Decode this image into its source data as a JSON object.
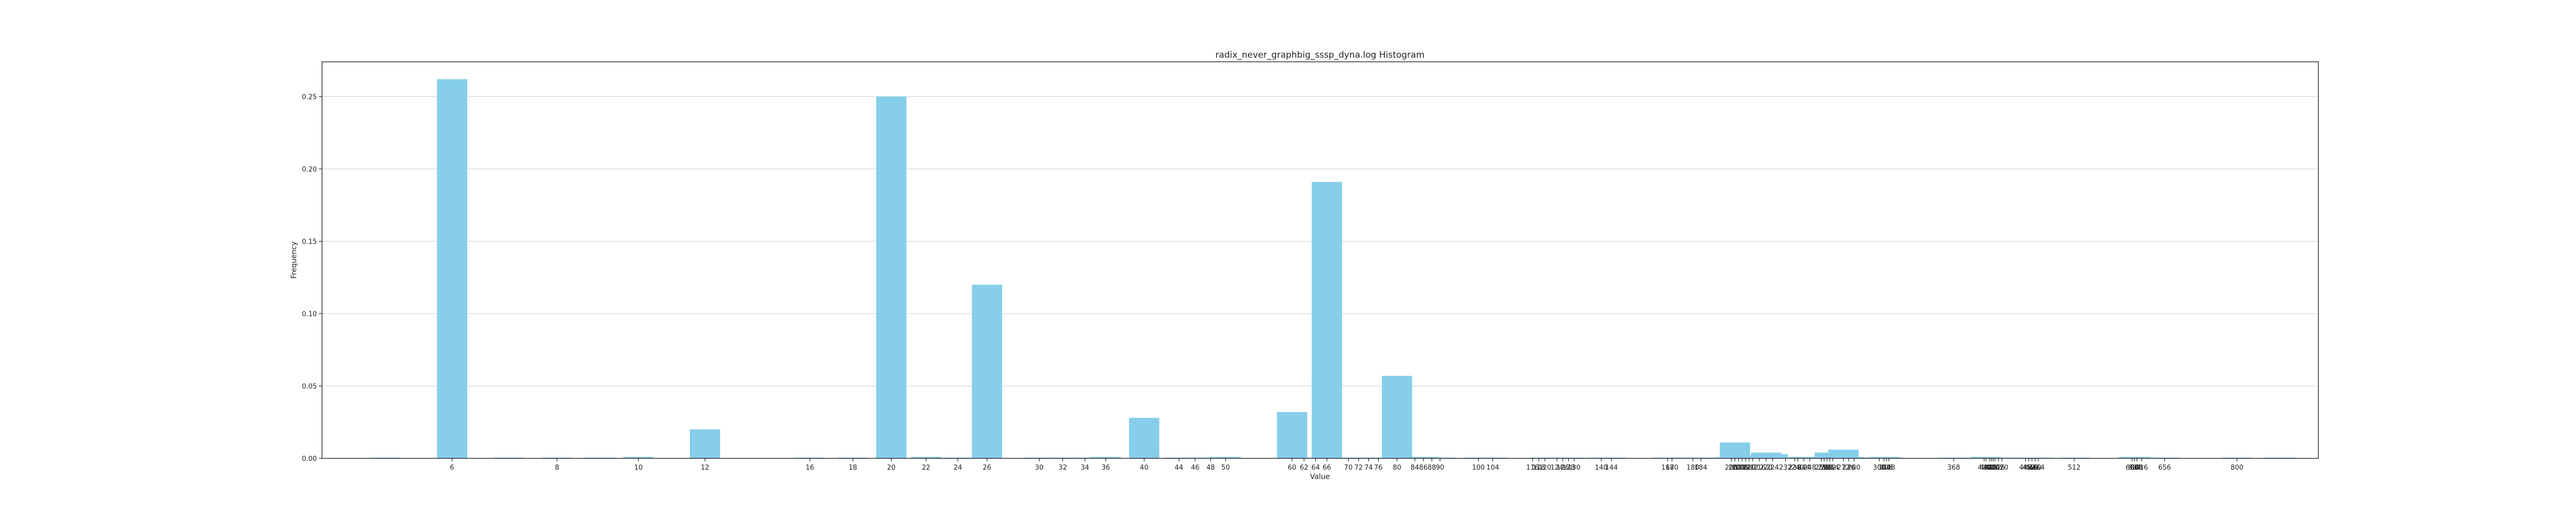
{
  "chart_data": {
    "type": "bar",
    "title": "radix_never_graphbig_sssp_dyna.log Histogram",
    "xlabel": "Value",
    "ylabel": "Frequency",
    "x_scale": "log",
    "xlim": [
      4.2,
      1000
    ],
    "ylim": [
      0,
      0.274
    ],
    "grid": "y",
    "legend": "none",
    "bar_color": "#87CEEB",
    "y_ticks": [
      0.0,
      0.05,
      0.1,
      0.15,
      0.2,
      0.25
    ],
    "y_tick_labels": [
      "0.00",
      "0.05",
      "0.10",
      "0.15",
      "0.20",
      "0.25"
    ],
    "x_ticks": [
      6,
      8,
      10,
      12,
      16,
      18,
      20,
      22,
      24,
      26,
      30,
      32,
      34,
      36,
      40,
      44,
      46,
      48,
      50,
      60,
      62,
      64,
      66,
      70,
      72,
      74,
      76,
      80,
      84,
      86,
      88,
      90,
      100,
      104,
      116,
      118,
      120,
      124,
      126,
      128,
      130,
      140,
      144,
      168,
      170,
      180,
      184,
      200,
      202,
      204,
      206,
      208,
      210,
      212,
      216,
      220,
      224,
      232,
      238,
      240,
      244,
      248,
      256,
      258,
      260,
      262,
      264,
      272,
      276,
      280,
      300,
      304,
      306,
      308,
      368,
      400,
      402,
      406,
      408,
      410,
      412,
      416,
      420,
      448,
      452,
      456,
      460,
      464,
      512,
      600,
      604,
      608,
      616,
      656,
      800
    ],
    "x_tick_labels": [
      "6",
      "8",
      "10",
      "12",
      "16",
      "18",
      "20",
      "22",
      "24",
      "26",
      "30",
      "32",
      "34",
      "36",
      "40",
      "44",
      "46",
      "48",
      "50",
      "60",
      "62",
      "64",
      "66",
      "70",
      "72",
      "74",
      "76",
      "80",
      "84",
      "86",
      "88",
      "90",
      "100",
      "104",
      "116",
      "118",
      "120",
      "124",
      "126",
      "128",
      "130",
      "140",
      "144",
      "168",
      "170",
      "180",
      "184",
      "200",
      "202",
      "204",
      "206",
      "208",
      "210",
      "212",
      "216",
      "220",
      "224",
      "232",
      "238",
      "240",
      "244",
      "248",
      "256",
      "258",
      "260",
      "262",
      "264",
      "272",
      "276",
      "280",
      "300",
      "304",
      "306",
      "308",
      "368",
      "400",
      "402",
      "406",
      "408",
      "410",
      "412",
      "416",
      "420",
      "448",
      "452",
      "456",
      "460",
      "464",
      "512",
      "600",
      "604",
      "608",
      "616",
      "656",
      "800"
    ],
    "x": [
      5,
      6,
      7,
      8,
      9,
      10,
      12,
      16,
      18,
      20,
      22,
      24,
      26,
      30,
      32,
      34,
      36,
      40,
      44,
      46,
      48,
      50,
      60,
      62,
      64,
      66,
      70,
      72,
      76,
      80,
      84,
      86,
      88,
      90,
      100,
      104,
      120,
      124,
      128,
      140,
      144,
      168,
      170,
      180,
      184,
      200,
      202,
      204,
      206,
      208,
      210,
      212,
      216,
      220,
      224,
      232,
      238,
      240,
      244,
      248,
      256,
      258,
      260,
      262,
      264,
      272,
      276,
      280,
      300,
      304,
      306,
      308,
      368,
      400,
      402,
      406,
      408,
      410,
      412,
      416,
      420,
      448,
      452,
      456,
      460,
      464,
      512,
      600,
      604,
      608,
      616,
      656,
      800,
      900
    ],
    "values": [
      0.0005,
      0.262,
      0.0005,
      0.0005,
      0.0005,
      0.001,
      0.02,
      0.0005,
      0.0005,
      0.25,
      0.001,
      0.0005,
      0.12,
      0.0005,
      0.0005,
      0.0005,
      0.001,
      0.028,
      0.0005,
      0.0005,
      0.0005,
      0.001,
      0.032,
      0.0005,
      0.0005,
      0.191,
      0.0005,
      0.0005,
      0.0005,
      0.057,
      0.0005,
      0.001,
      0.0005,
      0.0005,
      0.0005,
      0.0005,
      0.0005,
      0.0005,
      0.0005,
      0.0005,
      0.0005,
      0.0005,
      0.0005,
      0.0005,
      0.0005,
      0.0008,
      0.011,
      0.002,
      0.0015,
      0.001,
      0.0015,
      0.001,
      0.001,
      0.004,
      0.003,
      0.001,
      0.0005,
      0.0005,
      0.001,
      0.0005,
      0.0005,
      0.0005,
      0.001,
      0.004,
      0.002,
      0.006,
      0.001,
      0.0005,
      0.0005,
      0.001,
      0.0005,
      0.0005,
      0.0005,
      0.0005,
      0.001,
      0.0005,
      0.0005,
      0.0005,
      0.0005,
      0.0005,
      0.0005,
      0.0005,
      0.0005,
      0.0005,
      0.0005,
      0.0005,
      0.0005,
      0.0005,
      0.001,
      0.0005,
      0.0005,
      0.0005,
      0.0005,
      0.0005
    ]
  }
}
